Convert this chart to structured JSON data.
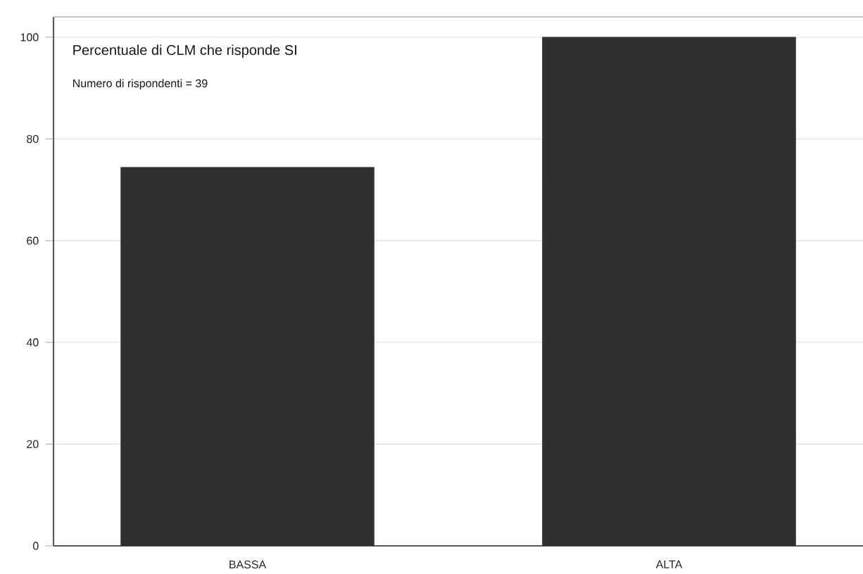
{
  "chart_data": {
    "type": "bar",
    "title": "Percentuale di CLM che risponde SI",
    "subtitle": "Numero di rispondenti = 39",
    "categories": [
      "BASSA",
      "ALTA"
    ],
    "values": [
      74.4,
      100
    ],
    "color": "#303030",
    "ylim": [
      0,
      104
    ],
    "yticks": [
      0,
      20,
      40,
      60,
      80,
      100
    ],
    "grid": "y"
  }
}
